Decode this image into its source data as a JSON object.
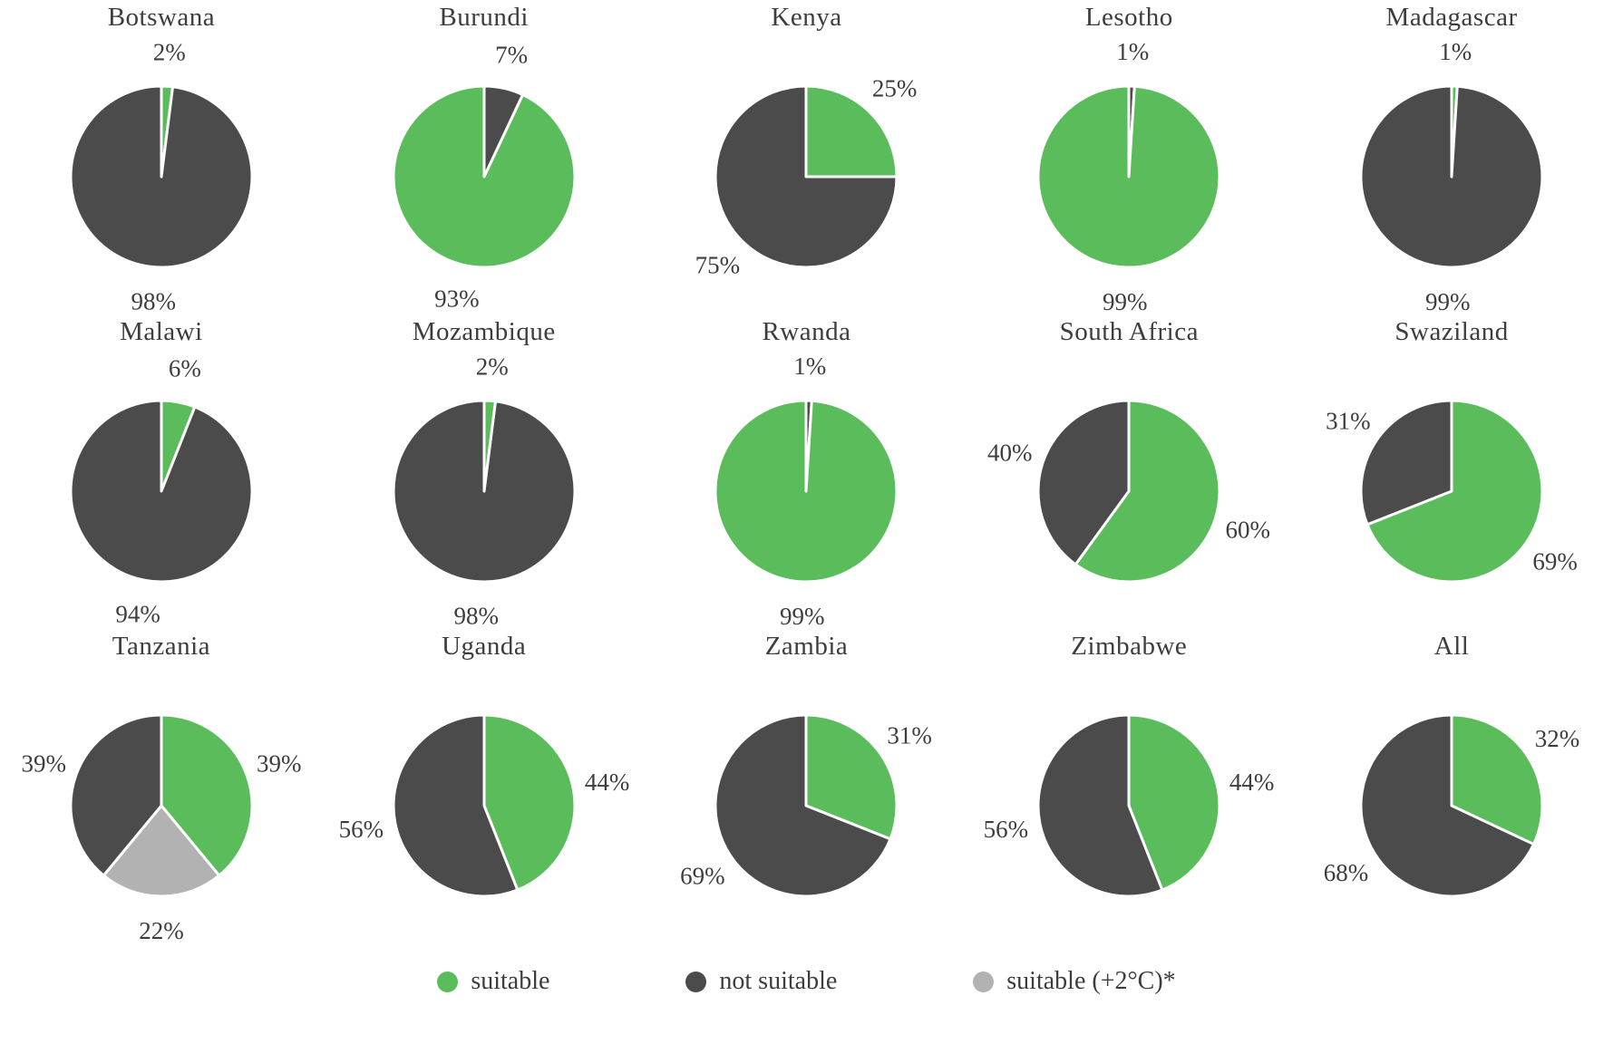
{
  "colors": {
    "suitable": "#5abc5a",
    "not_suitable": "#4b4b4b",
    "suitable_plus2": "#b2b2b2",
    "label_text": "#3d3d3d",
    "slice_border": "#ffffff"
  },
  "legend": {
    "items": [
      {
        "key": "suitable",
        "label": "suitable"
      },
      {
        "key": "not_suitable",
        "label": "not suitable"
      },
      {
        "key": "suitable_plus2",
        "label": "suitable (+2°C)*"
      }
    ]
  },
  "chart_data": {
    "type": "pie",
    "unit": "percent",
    "layout": "3 rows x 5 columns, legend bottom",
    "charts": [
      {
        "title": "Botswana",
        "slices": [
          {
            "category": "suitable",
            "key": "suitable",
            "value": 2,
            "label": "2%"
          },
          {
            "category": "not suitable",
            "key": "not_suitable",
            "value": 98,
            "label": "98%"
          }
        ]
      },
      {
        "title": "Burundi",
        "slices": [
          {
            "category": "not suitable",
            "key": "not_suitable",
            "value": 7,
            "label": "7%"
          },
          {
            "category": "suitable",
            "key": "suitable",
            "value": 93,
            "label": "93%"
          }
        ]
      },
      {
        "title": "Kenya",
        "slices": [
          {
            "category": "suitable",
            "key": "suitable",
            "value": 25,
            "label": "25%"
          },
          {
            "category": "not suitable",
            "key": "not_suitable",
            "value": 75,
            "label": "75%"
          }
        ]
      },
      {
        "title": "Lesotho",
        "slices": [
          {
            "category": "not suitable",
            "key": "not_suitable",
            "value": 1,
            "label": "1%"
          },
          {
            "category": "suitable",
            "key": "suitable",
            "value": 99,
            "label": "99%"
          }
        ]
      },
      {
        "title": "Madagascar",
        "slices": [
          {
            "category": "suitable",
            "key": "suitable",
            "value": 1,
            "label": "1%"
          },
          {
            "category": "not suitable",
            "key": "not_suitable",
            "value": 99,
            "label": "99%"
          }
        ]
      },
      {
        "title": "Malawi",
        "slices": [
          {
            "category": "suitable",
            "key": "suitable",
            "value": 6,
            "label": "6%"
          },
          {
            "category": "not suitable",
            "key": "not_suitable",
            "value": 94,
            "label": "94%"
          }
        ]
      },
      {
        "title": "Mozambique",
        "slices": [
          {
            "category": "suitable",
            "key": "suitable",
            "value": 2,
            "label": "2%"
          },
          {
            "category": "not suitable",
            "key": "not_suitable",
            "value": 98,
            "label": "98%"
          }
        ]
      },
      {
        "title": "Rwanda",
        "slices": [
          {
            "category": "not suitable",
            "key": "not_suitable",
            "value": 1,
            "label": "1%"
          },
          {
            "category": "suitable",
            "key": "suitable",
            "value": 99,
            "label": "99%"
          }
        ]
      },
      {
        "title": "South Africa",
        "slices": [
          {
            "category": "suitable",
            "key": "suitable",
            "value": 60,
            "label": "60%"
          },
          {
            "category": "not suitable",
            "key": "not_suitable",
            "value": 40,
            "label": "40%"
          }
        ]
      },
      {
        "title": "Swaziland",
        "slices": [
          {
            "category": "suitable",
            "key": "suitable",
            "value": 69,
            "label": "69%"
          },
          {
            "category": "not suitable",
            "key": "not_suitable",
            "value": 31,
            "label": "31%"
          }
        ]
      },
      {
        "title": "Tanzania",
        "slices": [
          {
            "category": "suitable",
            "key": "suitable",
            "value": 39,
            "label": "39%"
          },
          {
            "category": "suitable (+2°C)*",
            "key": "suitable_plus2",
            "value": 22,
            "label": "22%"
          },
          {
            "category": "not suitable",
            "key": "not_suitable",
            "value": 39,
            "label": "39%"
          }
        ]
      },
      {
        "title": "Uganda",
        "slices": [
          {
            "category": "suitable",
            "key": "suitable",
            "value": 44,
            "label": "44%"
          },
          {
            "category": "not suitable",
            "key": "not_suitable",
            "value": 56,
            "label": "56%"
          }
        ]
      },
      {
        "title": "Zambia",
        "slices": [
          {
            "category": "suitable",
            "key": "suitable",
            "value": 31,
            "label": "31%"
          },
          {
            "category": "not suitable",
            "key": "not_suitable",
            "value": 69,
            "label": "69%"
          }
        ]
      },
      {
        "title": "Zimbabwe",
        "slices": [
          {
            "category": "suitable",
            "key": "suitable",
            "value": 44,
            "label": "44%"
          },
          {
            "category": "not suitable",
            "key": "not_suitable",
            "value": 56,
            "label": "56%"
          }
        ]
      },
      {
        "title": "All",
        "slices": [
          {
            "category": "suitable",
            "key": "suitable",
            "value": 32,
            "label": "32%"
          },
          {
            "category": "not suitable",
            "key": "not_suitable",
            "value": 68,
            "label": "68%"
          }
        ]
      }
    ]
  }
}
